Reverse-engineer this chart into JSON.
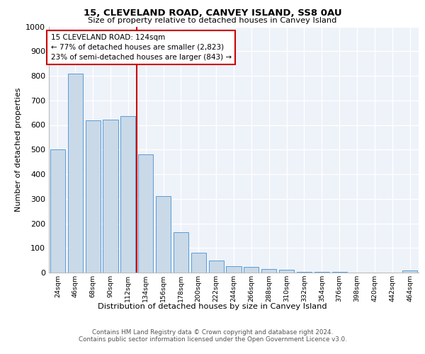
{
  "title": "15, CLEVELAND ROAD, CANVEY ISLAND, SS8 0AU",
  "subtitle": "Size of property relative to detached houses in Canvey Island",
  "xlabel": "Distribution of detached houses by size in Canvey Island",
  "ylabel": "Number of detached properties",
  "footer1": "Contains HM Land Registry data © Crown copyright and database right 2024.",
  "footer2": "Contains public sector information licensed under the Open Government Licence v3.0.",
  "annotation_line1": "15 CLEVELAND ROAD: 124sqm",
  "annotation_line2": "← 77% of detached houses are smaller (2,823)",
  "annotation_line3": "23% of semi-detached houses are larger (843) →",
  "bar_color": "#c9d9e8",
  "bar_edge_color": "#5b9bd5",
  "vline_color": "#cc0000",
  "annotation_box_color": "#cc0000",
  "background_color": "#eef2f9",
  "categories": [
    "24sqm",
    "46sqm",
    "68sqm",
    "90sqm",
    "112sqm",
    "134sqm",
    "156sqm",
    "178sqm",
    "200sqm",
    "222sqm",
    "244sqm",
    "266sqm",
    "288sqm",
    "310sqm",
    "332sqm",
    "354sqm",
    "376sqm",
    "398sqm",
    "420sqm",
    "442sqm",
    "464sqm"
  ],
  "values": [
    500,
    808,
    620,
    623,
    635,
    480,
    312,
    163,
    80,
    48,
    27,
    22,
    14,
    11,
    4,
    3,
    2,
    1,
    1,
    1,
    10
  ],
  "ylim": [
    0,
    1000
  ],
  "vline_x": 4.5
}
